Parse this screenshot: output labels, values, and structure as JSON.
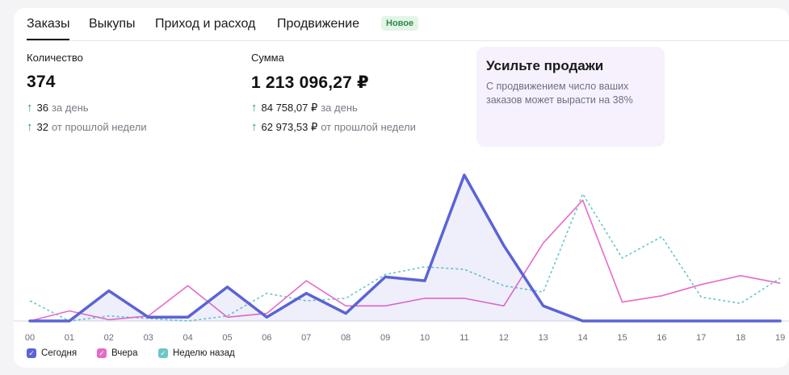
{
  "tabs": [
    {
      "label": "Заказы",
      "active": true
    },
    {
      "label": "Выкупы",
      "active": false
    },
    {
      "label": "Приход и расход",
      "active": false
    },
    {
      "label": "Продвижение",
      "active": false
    }
  ],
  "badge_new": "Новое",
  "metrics": {
    "count": {
      "label": "Количество",
      "value": "374",
      "day_delta": "36",
      "day_suffix": "за день",
      "week_delta": "32",
      "week_suffix": "от прошлой недели"
    },
    "sum": {
      "label": "Сумма",
      "value": "1 213 096,27 ₽",
      "day_delta": "84 758,07 ₽",
      "day_suffix": "за день",
      "week_delta": "62 973,53 ₽",
      "week_suffix": "от прошлой недели"
    }
  },
  "promo": {
    "title": "Усильте продажи",
    "text": "С продвижением число ваших заказов может вырасти на 38%"
  },
  "colors": {
    "today": "#5b63d6",
    "yesterday": "#e86ac8",
    "week_ago": "#6cc6c6",
    "accent_green": "#22a05a"
  },
  "chart_data": {
    "type": "line",
    "x": [
      "00",
      "01",
      "02",
      "03",
      "04",
      "05",
      "06",
      "07",
      "08",
      "09",
      "10",
      "11",
      "12",
      "13",
      "14",
      "15",
      "16",
      "17",
      "18",
      "19"
    ],
    "ylim": [
      0,
      58
    ],
    "grid": false,
    "legend_position": "bottom-left",
    "series": [
      {
        "name": "Сегодня",
        "key": "today",
        "style": "solid-thick-filled",
        "values": [
          0,
          0,
          12,
          1.5,
          1.5,
          13.5,
          1.5,
          11,
          3,
          17.5,
          16,
          58,
          30,
          6,
          0,
          0,
          0,
          0,
          0,
          0
        ]
      },
      {
        "name": "Вчера",
        "key": "yesterday",
        "style": "solid",
        "values": [
          0,
          4,
          0.5,
          2,
          14,
          1.5,
          3,
          16,
          6,
          6,
          9,
          9,
          6,
          31,
          48,
          7.5,
          10,
          14.5,
          18,
          15
        ]
      },
      {
        "name": "Неделю назад",
        "key": "week_ago",
        "style": "dashed",
        "values": [
          8,
          0,
          2,
          1,
          0,
          2,
          11,
          8,
          9,
          18.5,
          21.5,
          20.5,
          14,
          11.5,
          50.5,
          25,
          33.5,
          9.5,
          7,
          17
        ]
      }
    ]
  }
}
